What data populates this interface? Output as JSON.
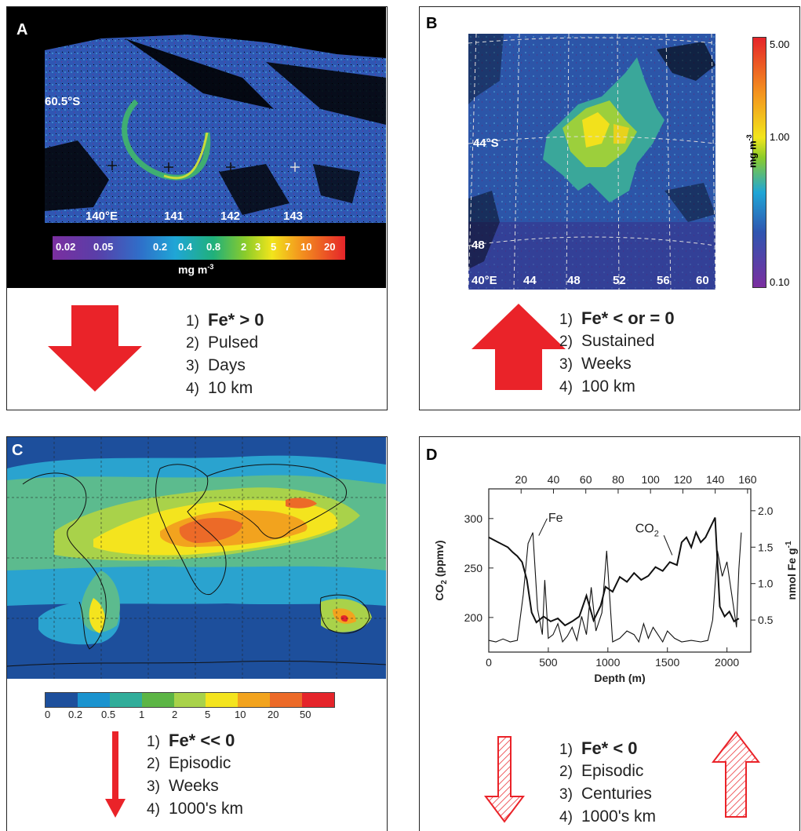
{
  "colors": {
    "red_arrow": "#ea2329",
    "dark_ocean": "#1d4f9c",
    "panel_border": "#222222"
  },
  "panels": [
    {
      "letter": "A",
      "lat_label": "60.5°S",
      "lon_labels": [
        "140°E",
        "141",
        "142",
        "143"
      ],
      "colorbar_ticks": [
        "0.02",
        "0.05",
        "0.2",
        "0.4",
        "0.8",
        "2",
        "3",
        "5",
        "7",
        "10",
        "20"
      ],
      "unit": "mg m",
      "unit_sup": "-3",
      "arrow": "down",
      "items": [
        {
          "num": "1)",
          "text": "Fe* > 0",
          "bold": true
        },
        {
          "num": "2)",
          "text": "Pulsed",
          "bold": false
        },
        {
          "num": "3)",
          "text": "Days",
          "bold": false
        },
        {
          "num": "4)",
          "text": "10 km",
          "bold": false
        }
      ]
    },
    {
      "letter": "B",
      "lat_labels": [
        "44°S",
        "48"
      ],
      "lon_labels": [
        "40°E",
        "44",
        "48",
        "52",
        "56",
        "60"
      ],
      "colorbar_ticks": [
        "5.00",
        "1.00",
        "0.10"
      ],
      "unit": "mg m",
      "unit_sup": "-3",
      "arrow": "up",
      "items": [
        {
          "num": "1)",
          "text": "Fe* < or = 0",
          "bold": true
        },
        {
          "num": "2)",
          "text": "Sustained",
          "bold": false
        },
        {
          "num": "3)",
          "text": "Weeks",
          "bold": false
        },
        {
          "num": "4)",
          "text": "100 km",
          "bold": false
        }
      ]
    },
    {
      "letter": "C",
      "colorbar_ticks": [
        "0",
        "0.2",
        "0.5",
        "1",
        "2",
        "5",
        "10",
        "20",
        "50"
      ],
      "arrow": "down",
      "items": [
        {
          "num": "1)",
          "text": "Fe* << 0",
          "bold": true
        },
        {
          "num": "2)",
          "text": "Episodic",
          "bold": false
        },
        {
          "num": "3)",
          "text": "Weeks",
          "bold": false
        },
        {
          "num": "4)",
          "text": "1000's km",
          "bold": false
        }
      ]
    },
    {
      "letter": "D",
      "items": [
        {
          "num": "1)",
          "text": "Fe* < 0",
          "bold": true
        },
        {
          "num": "2)",
          "text": "Episodic",
          "bold": false
        },
        {
          "num": "3)",
          "text": "Centuries",
          "bold": false
        },
        {
          "num": "4)",
          "text": "1000's km",
          "bold": false
        }
      ]
    }
  ],
  "chart_data": {
    "type": "line",
    "xlabel": "Depth (m)",
    "x_ticks": [
      0,
      500,
      1000,
      1500,
      2000
    ],
    "xlim": [
      0,
      2200
    ],
    "ylabel": "CO",
    "ylabel_sub": "2",
    "ylabel_unit": " (ppmv)",
    "y_ticks": [
      200,
      250,
      300
    ],
    "ylim": [
      165,
      330
    ],
    "y2label": "nmol Fe g",
    "y2label_sup": "-1",
    "y2_ticks": [
      0.5,
      1.0,
      1.5,
      2.0
    ],
    "y2lim": [
      0.06,
      2.3
    ],
    "top_ticks": [
      20,
      40,
      60,
      80,
      100,
      120,
      140,
      160
    ],
    "top_axis_range": [
      0,
      162
    ],
    "annotations": {
      "fe": "Fe",
      "co2": "CO",
      "co2_sub": "2"
    },
    "series": [
      {
        "name": "Fe",
        "axis": "right",
        "x": [
          0,
          60,
          120,
          180,
          240,
          290,
          330,
          370,
          410,
          450,
          470,
          500,
          540,
          580,
          620,
          660,
          700,
          740,
          780,
          820,
          860,
          900,
          950,
          990,
          1040,
          1100,
          1160,
          1220,
          1260,
          1300,
          1340,
          1380,
          1420,
          1460,
          1500,
          1560,
          1620,
          1700,
          1780,
          1840,
          1880,
          1920,
          1960,
          2000,
          2040,
          2080,
          2100,
          2120
        ],
        "values": [
          0.22,
          0.2,
          0.24,
          0.2,
          0.22,
          0.85,
          1.55,
          1.7,
          0.65,
          0.3,
          1.05,
          0.25,
          0.3,
          0.45,
          0.2,
          0.28,
          0.4,
          0.22,
          0.55,
          0.3,
          0.95,
          0.35,
          0.6,
          1.45,
          0.2,
          0.25,
          0.35,
          0.3,
          0.2,
          0.45,
          0.25,
          0.4,
          0.3,
          0.2,
          0.35,
          0.25,
          0.2,
          0.22,
          0.2,
          0.22,
          0.5,
          1.45,
          1.1,
          1.3,
          0.85,
          0.4,
          1.2,
          1.7
        ]
      },
      {
        "name": "CO2",
        "axis": "left",
        "x": [
          0,
          80,
          160,
          200,
          240,
          280,
          320,
          360,
          400,
          460,
          520,
          580,
          640,
          700,
          760,
          820,
          880,
          940,
          980,
          1040,
          1100,
          1160,
          1220,
          1280,
          1340,
          1400,
          1460,
          1520,
          1580,
          1620,
          1660,
          1700,
          1740,
          1780,
          1820,
          1860,
          1900,
          1940,
          1980,
          2020,
          2060,
          2100
        ],
        "values": [
          281,
          276,
          271,
          266,
          262,
          256,
          238,
          205,
          195,
          201,
          196,
          199,
          192,
          196,
          201,
          222,
          197,
          212,
          231,
          226,
          241,
          236,
          245,
          238,
          242,
          251,
          247,
          256,
          253,
          276,
          281,
          271,
          286,
          276,
          281,
          291,
          301,
          211,
          201,
          206,
          196,
          199
        ]
      }
    ]
  }
}
